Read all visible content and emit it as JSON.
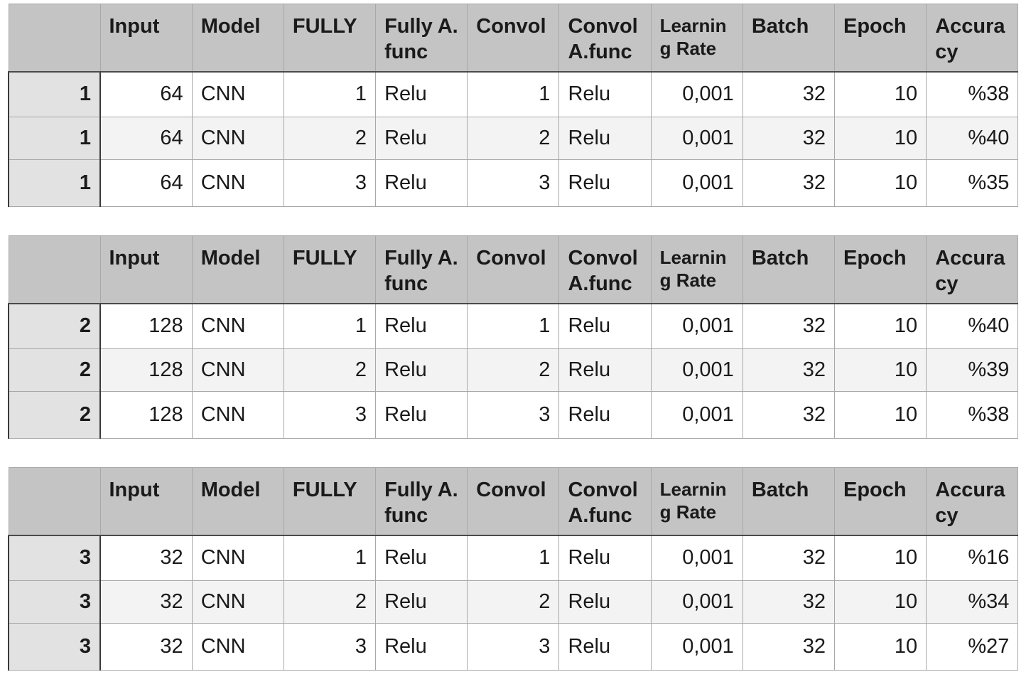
{
  "headers": [
    "",
    "Input",
    "Model",
    "FULLY",
    "Fully A.func",
    "Convol",
    "Convol A.func",
    "Learning Rate",
    "Batch",
    "Epoch",
    "Accuracy"
  ],
  "tables": [
    {
      "rows": [
        {
          "idx": "1",
          "input": "64",
          "model": "CNN",
          "fully": "1",
          "fully_afunc": "Relu",
          "convol": "1",
          "convol_afunc": "Relu",
          "lr": "0,001",
          "batch": "32",
          "epoch": "10",
          "accuracy": "%38"
        },
        {
          "idx": "1",
          "input": "64",
          "model": "CNN",
          "fully": "2",
          "fully_afunc": "Relu",
          "convol": "2",
          "convol_afunc": "Relu",
          "lr": "0,001",
          "batch": "32",
          "epoch": "10",
          "accuracy": "%40"
        },
        {
          "idx": "1",
          "input": "64",
          "model": "CNN",
          "fully": "3",
          "fully_afunc": "Relu",
          "convol": "3",
          "convol_afunc": "Relu",
          "lr": "0,001",
          "batch": "32",
          "epoch": "10",
          "accuracy": "%35"
        }
      ]
    },
    {
      "rows": [
        {
          "idx": "2",
          "input": "128",
          "model": "CNN",
          "fully": "1",
          "fully_afunc": "Relu",
          "convol": "1",
          "convol_afunc": "Relu",
          "lr": "0,001",
          "batch": "32",
          "epoch": "10",
          "accuracy": "%40"
        },
        {
          "idx": "2",
          "input": "128",
          "model": "CNN",
          "fully": "2",
          "fully_afunc": "Relu",
          "convol": "2",
          "convol_afunc": "Relu",
          "lr": "0,001",
          "batch": "32",
          "epoch": "10",
          "accuracy": "%39"
        },
        {
          "idx": "2",
          "input": "128",
          "model": "CNN",
          "fully": "3",
          "fully_afunc": "Relu",
          "convol": "3",
          "convol_afunc": "Relu",
          "lr": "0,001",
          "batch": "32",
          "epoch": "10",
          "accuracy": "%38"
        }
      ]
    },
    {
      "rows": [
        {
          "idx": "3",
          "input": "32",
          "model": "CNN",
          "fully": "1",
          "fully_afunc": "Relu",
          "convol": "1",
          "convol_afunc": "Relu",
          "lr": "0,001",
          "batch": "32",
          "epoch": "10",
          "accuracy": "%16"
        },
        {
          "idx": "3",
          "input": "32",
          "model": "CNN",
          "fully": "2",
          "fully_afunc": "Relu",
          "convol": "2",
          "convol_afunc": "Relu",
          "lr": "0,001",
          "batch": "32",
          "epoch": "10",
          "accuracy": "%34"
        },
        {
          "idx": "3",
          "input": "32",
          "model": "CNN",
          "fully": "3",
          "fully_afunc": "Relu",
          "convol": "3",
          "convol_afunc": "Relu",
          "lr": "0,001",
          "batch": "32",
          "epoch": "10",
          "accuracy": "%27"
        }
      ]
    }
  ],
  "colors": {
    "header_bg": "#c4c4c4",
    "row_header_bg": "#e2e2e2",
    "zebra_bg": "#f3f3f3",
    "grid_line": "#a8a8a8"
  }
}
